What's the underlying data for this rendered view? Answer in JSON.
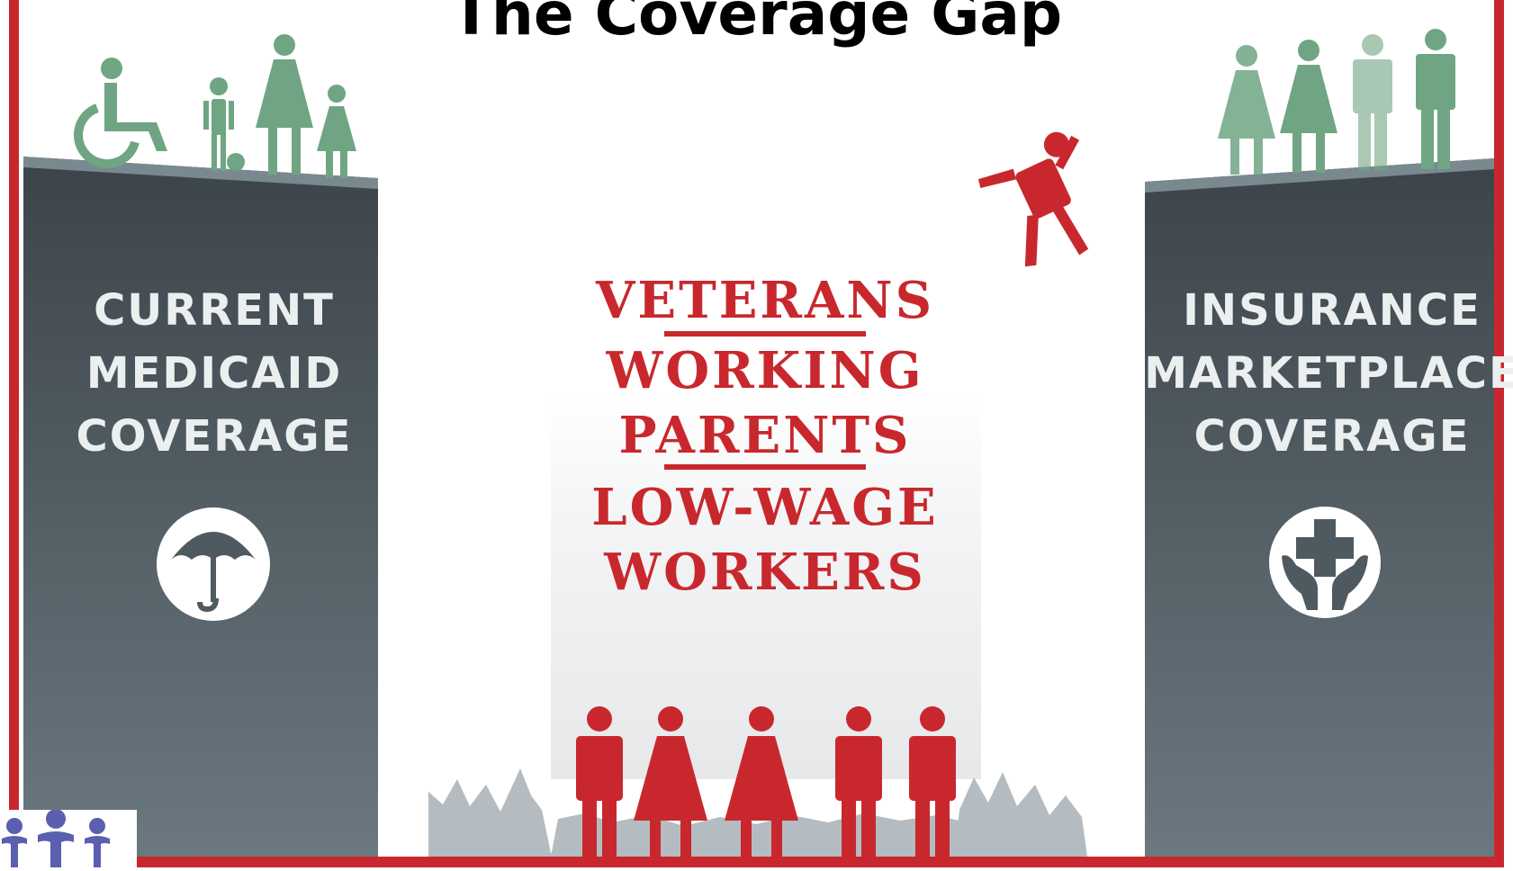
{
  "title": "The Coverage Gap",
  "left_pillar": {
    "lines": [
      "CURRENT",
      "MEDICAID",
      "COVERAGE"
    ],
    "icon": "umbrella-icon"
  },
  "right_pillar": {
    "lines": [
      "INSURANCE",
      "MARKETPLACE",
      "COVERAGE"
    ],
    "icon": "hands-medical-cross-icon"
  },
  "gap": {
    "groups": [
      "VETERANS",
      "WORKING",
      "PARENTS",
      "LOW-WAGE",
      "WORKERS"
    ]
  },
  "icons": {
    "left_people": [
      "wheelchair-user-icon",
      "child-with-ball-icon",
      "woman-icon",
      "girl-icon"
    ],
    "right_people": [
      "woman-icon",
      "woman-icon",
      "man-icon",
      "man-icon"
    ],
    "falling_person": "falling-person-icon",
    "gap_people": [
      "man-icon",
      "woman-icon",
      "woman-icon",
      "man-icon",
      "man-icon"
    ],
    "logo": "family-logo-icon"
  },
  "colors": {
    "accent_red": "#c8282d",
    "pillar_dark": "#3d474d",
    "pillar_light": "#6c7a82",
    "people_green": "#6fa583",
    "rubble_gray": "#b4bcc2",
    "logo_blue": "#5a5fb0"
  }
}
